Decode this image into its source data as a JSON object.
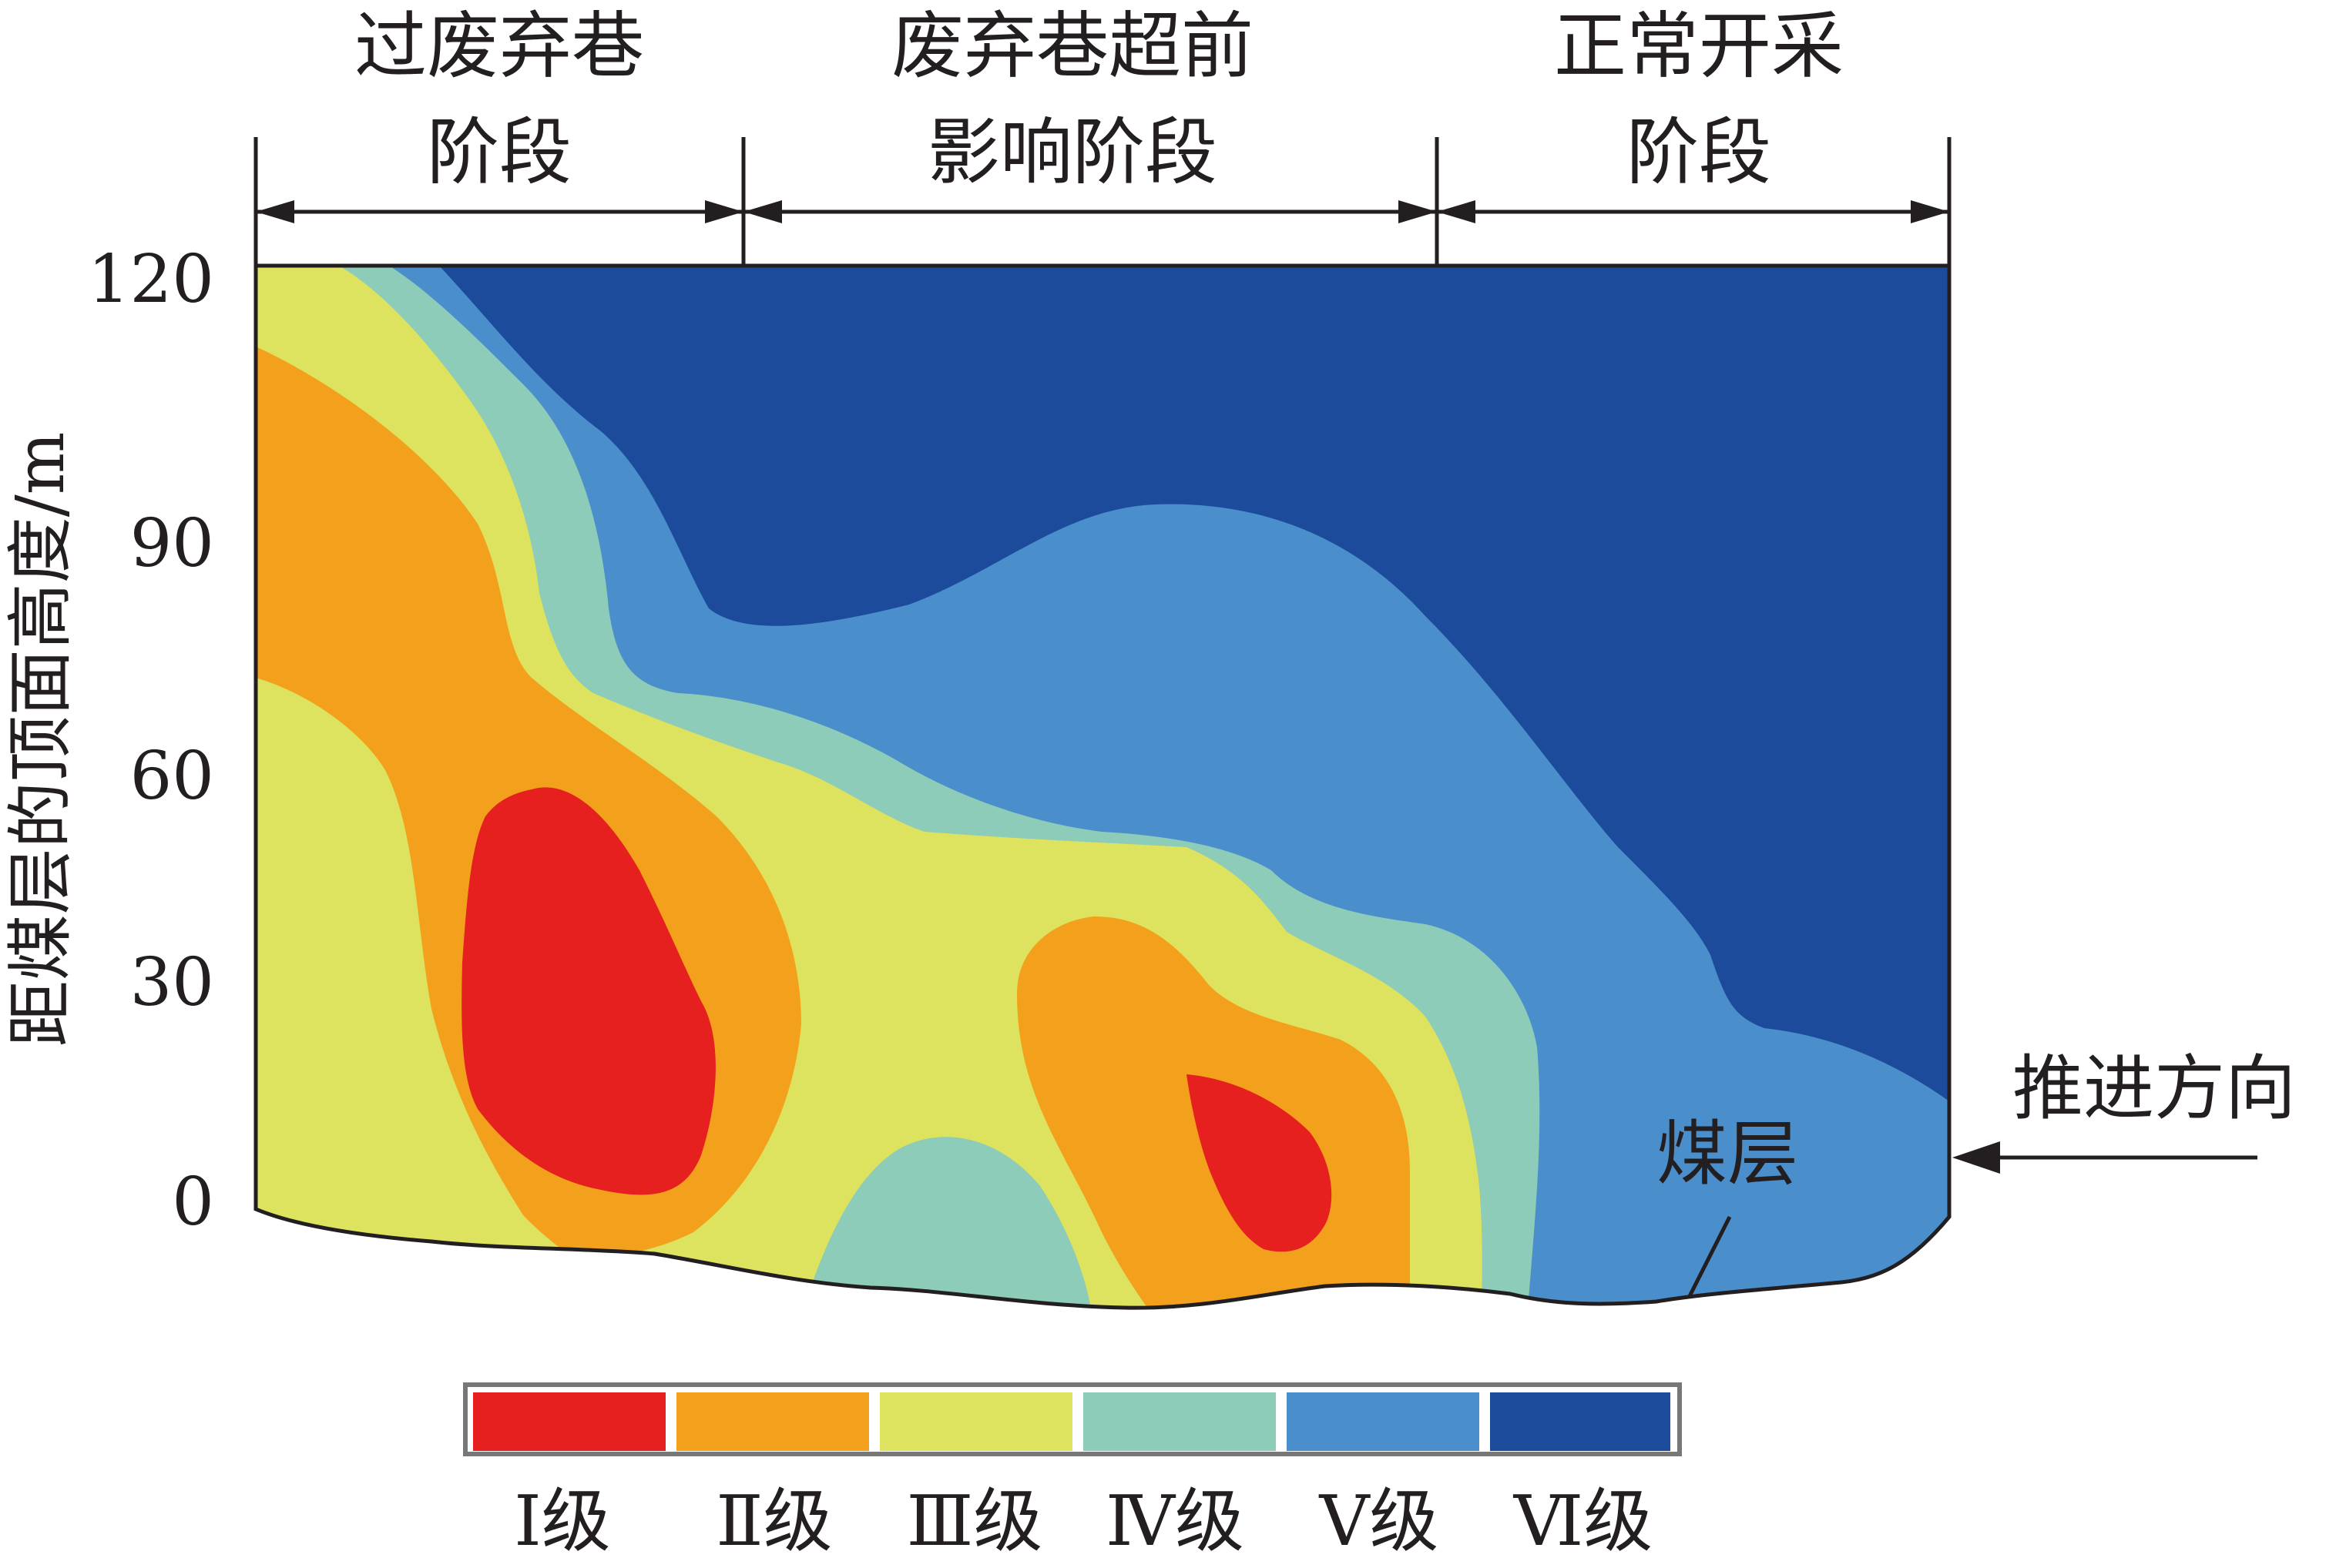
{
  "chart_data": {
    "type": "contour",
    "stages": [
      {
        "label_line1": "过废弃巷",
        "label_line2": "阶段"
      },
      {
        "label_line1": "废弃巷超前",
        "label_line2": "影响阶段"
      },
      {
        "label_line1": "正常开采",
        "label_line2": "阶段"
      }
    ],
    "ylabel": "距煤层的顶面高度/m",
    "yticks": [
      "120",
      "90",
      "60",
      "30",
      "0"
    ],
    "ylim": [
      0,
      120
    ],
    "annotations": {
      "direction": "推进方向",
      "seam": "煤层"
    },
    "levels": [
      {
        "label": "Ⅰ级",
        "color": "#e5201f"
      },
      {
        "label": "Ⅱ级",
        "color": "#f3a11c"
      },
      {
        "label": "Ⅲ级",
        "color": "#dde35e"
      },
      {
        "label": "Ⅳ级",
        "color": "#8dccb8"
      },
      {
        "label": "Ⅴ级",
        "color": "#4a8ecc"
      },
      {
        "label": "Ⅵ级",
        "color": "#1d4b9c"
      }
    ]
  }
}
